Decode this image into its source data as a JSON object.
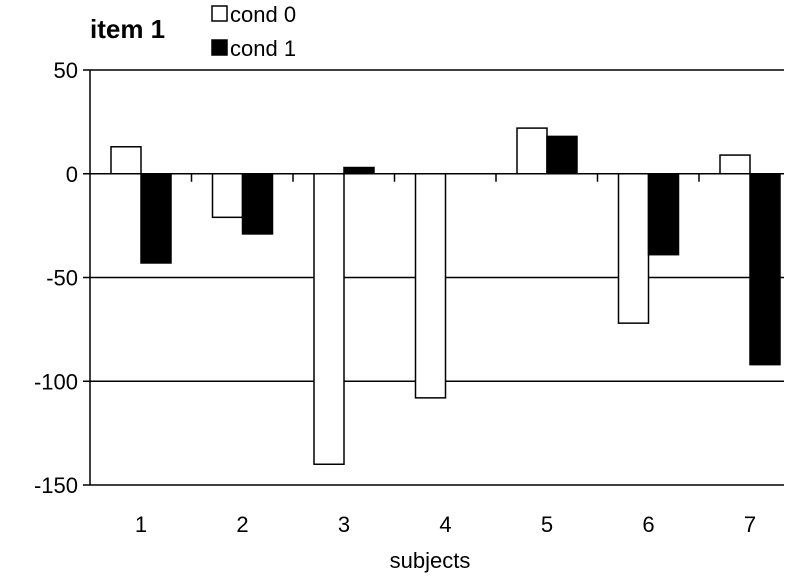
{
  "chart_data": {
    "type": "bar",
    "title": "item 1",
    "xlabel": "subjects",
    "ylabel": "",
    "categories": [
      "1",
      "2",
      "3",
      "4",
      "5",
      "6",
      "7"
    ],
    "series": [
      {
        "name": "cond 0",
        "values": [
          13,
          -21,
          -140,
          -108,
          22,
          -72,
          9
        ],
        "color": "#ffffff"
      },
      {
        "name": "cond 1",
        "values": [
          -43,
          -29,
          3,
          0,
          18,
          -39,
          -92
        ],
        "color": "#000000"
      }
    ],
    "ylim": [
      -150,
      50
    ],
    "yticks": [
      "50",
      "0",
      "-50",
      "-100",
      "-150"
    ],
    "grid": true,
    "legend_position": "top-left"
  }
}
